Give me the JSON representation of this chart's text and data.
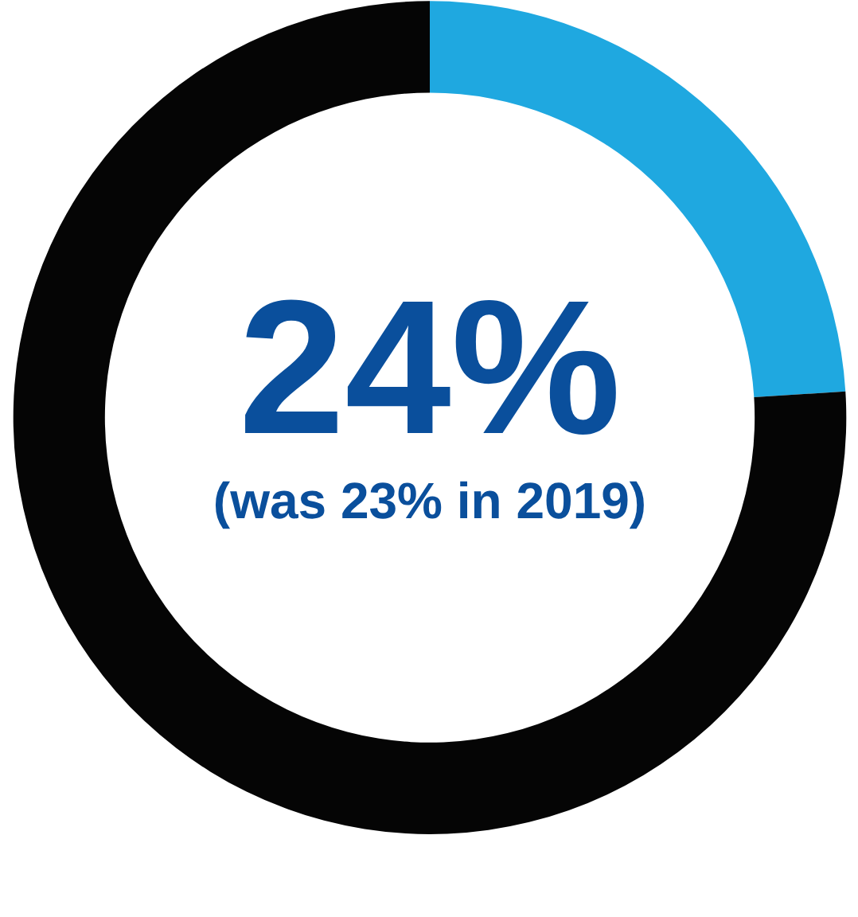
{
  "chart_data": {
    "type": "donut",
    "categories": [
      null,
      null
    ],
    "values": [
      24,
      76
    ],
    "colors": [
      "#1fa8e0",
      "#050505"
    ],
    "annotations": [
      "24%",
      "(was 23% in 2019)"
    ]
  }
}
